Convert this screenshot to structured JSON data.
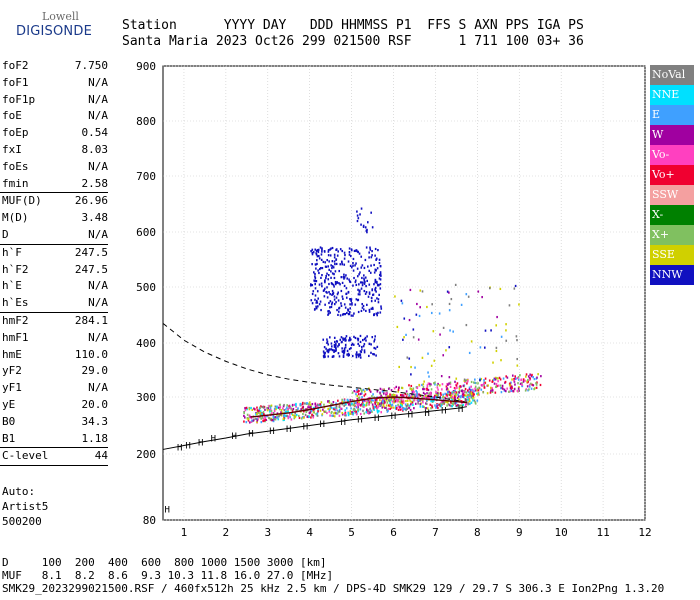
{
  "logo": {
    "top": "Lowell",
    "bottom": "DIGISONDE"
  },
  "header": {
    "line1": "Station      YYYY DAY   DDD HHMMSS P1  FFS S AXN PPS IGA PS",
    "line2": "Santa Maria 2023 Oct26 299 021500 RSF      1 711 100 03+ 36"
  },
  "params": {
    "group1": [
      {
        "label": "foF2",
        "value": "7.750"
      },
      {
        "label": "foF1",
        "value": "N/A"
      },
      {
        "label": "foF1p",
        "value": "N/A"
      },
      {
        "label": "foE",
        "value": "N/A"
      },
      {
        "label": "foEp",
        "value": "0.54"
      },
      {
        "label": "fxI",
        "value": "8.03"
      },
      {
        "label": "foEs",
        "value": "N/A"
      },
      {
        "label": "fmin",
        "value": "2.58"
      }
    ],
    "group2": [
      {
        "label": "MUF(D)",
        "value": "26.96"
      },
      {
        "label": "M(D)",
        "value": "3.48"
      },
      {
        "label": "D",
        "value": "N/A"
      }
    ],
    "group3": [
      {
        "label": "h`F",
        "value": "247.5"
      },
      {
        "label": "h`F2",
        "value": "247.5"
      },
      {
        "label": "h`E",
        "value": "N/A"
      },
      {
        "label": "h`Es",
        "value": "N/A"
      }
    ],
    "group4": [
      {
        "label": "hmF2",
        "value": "284.1"
      },
      {
        "label": "hmF1",
        "value": "N/A"
      },
      {
        "label": "hmE",
        "value": "110.0"
      },
      {
        "label": "yF2",
        "value": "29.0"
      },
      {
        "label": "yF1",
        "value": "N/A"
      },
      {
        "label": "yE",
        "value": "20.0"
      },
      {
        "label": "B0",
        "value": "34.3"
      },
      {
        "label": "B1",
        "value": "1.18"
      }
    ],
    "group5": [
      {
        "label": "C-level",
        "value": "44"
      }
    ]
  },
  "auto": {
    "line1": "Auto:",
    "line2": "Artist5",
    "line3": "500200"
  },
  "legend": [
    {
      "label": "NoVal",
      "color": "#808080"
    },
    {
      "label": "NNE",
      "color": "#00e0ff"
    },
    {
      "label": "E",
      "color": "#3fa0ff"
    },
    {
      "label": "W",
      "color": "#a000a0"
    },
    {
      "label": "Vo-",
      "color": "#ff40c0"
    },
    {
      "label": "Vo+",
      "color": "#f00030"
    },
    {
      "label": "SSW",
      "color": "#f4a0a0"
    },
    {
      "label": "X-",
      "color": "#008000"
    },
    {
      "label": "X+",
      "color": "#80c060"
    },
    {
      "label": "SSE",
      "color": "#d0d000"
    },
    {
      "label": "NNW",
      "color": "#1010c0"
    }
  ],
  "footer": {
    "line1": "D     100  200  400  600  800 1000 1500 3000 [km]",
    "line2": "MUF   8.1  8.2  8.6  9.3 10.3 11.8 16.0 27.0 [MHz]",
    "line3": "SMK29_2023299021500.RSF / 460fx512h 25 kHz 2.5 km / DPS-4D SMK29 129 / 29.7 S 306.3 E Ion2Png 1.3.20"
  },
  "chart_data": {
    "type": "scatter",
    "xlim": [
      0.5,
      12
    ],
    "ylim": [
      80,
      900
    ],
    "xticks": [
      "1",
      "2",
      "3",
      "4",
      "5",
      "6",
      "7",
      "8",
      "9",
      "10",
      "11",
      "12"
    ],
    "yticks": [
      "80",
      "200",
      "300",
      "400",
      "500",
      "600",
      "700",
      "800",
      "900"
    ],
    "grid": true,
    "trace": {
      "x": [
        2.6,
        3.0,
        3.5,
        4.0,
        4.5,
        5.0,
        5.5,
        6.0,
        6.5,
        7.0,
        7.5,
        7.75
      ],
      "y": [
        265,
        268,
        272,
        278,
        285,
        292,
        298,
        300,
        298,
        295,
        292,
        290
      ]
    },
    "profile": {
      "x": [
        0.5,
        1.0,
        1.5,
        2.0,
        2.5,
        3.0,
        3.5,
        4.0,
        4.5,
        5.0,
        5.5,
        6.0,
        6.5,
        7.0,
        7.5,
        7.75
      ],
      "y": [
        435,
        405,
        383,
        366,
        352,
        341,
        333,
        327,
        322,
        318,
        314,
        310,
        305,
        300,
        294,
        291
      ]
    },
    "virtual_height": {
      "x": [
        0.5,
        1.0,
        1.5,
        2.0,
        2.5,
        3.0,
        3.5,
        4.0,
        4.5,
        5.0,
        5.5,
        6.0,
        6.5,
        7.0,
        7.5,
        7.75
      ],
      "y": [
        208,
        215,
        222,
        228,
        235,
        240,
        245,
        250,
        255,
        260,
        264,
        268,
        272,
        276,
        280,
        283
      ]
    },
    "h_markers": [
      [
        0.6,
        101
      ],
      [
        0.9,
        213
      ],
      [
        1.1,
        217
      ],
      [
        1.4,
        222
      ],
      [
        1.7,
        229
      ],
      [
        2.2,
        233
      ],
      [
        2.6,
        238
      ],
      [
        3.1,
        242
      ],
      [
        3.5,
        246
      ],
      [
        3.9,
        250
      ],
      [
        4.3,
        254
      ],
      [
        4.8,
        258
      ],
      [
        5.2,
        262
      ],
      [
        5.6,
        265
      ],
      [
        6.0,
        268
      ],
      [
        6.4,
        271
      ],
      [
        6.8,
        274
      ],
      [
        7.2,
        278
      ],
      [
        7.6,
        281
      ]
    ],
    "clusters": [
      {
        "name": "F2-trace-dense",
        "x0": 2.4,
        "x1": 8.0,
        "y0": 250,
        "y1": 305,
        "n": 900,
        "colors": [
          "#a000a0",
          "#f00030",
          "#ff40c0",
          "#d0d000",
          "#3fa0ff",
          "#00e0ff",
          "#80c060",
          "#808080"
        ]
      },
      {
        "name": "F2-trace-upper",
        "x0": 5.0,
        "x1": 9.5,
        "y0": 285,
        "y1": 340,
        "n": 450,
        "colors": [
          "#a000a0",
          "#f00030",
          "#d0d000",
          "#3fa0ff",
          "#80c060",
          "#ff40c0"
        ]
      },
      {
        "name": "NNW-high",
        "x0": 4.0,
        "x1": 5.7,
        "y0": 450,
        "y1": 575,
        "n": 380,
        "colors": [
          "#1010c0"
        ]
      },
      {
        "name": "NNW-mid",
        "x0": 4.3,
        "x1": 5.6,
        "y0": 375,
        "y1": 415,
        "n": 140,
        "colors": [
          "#1010c0"
        ]
      },
      {
        "name": "NNW-top",
        "x0": 5.1,
        "x1": 5.5,
        "y0": 600,
        "y1": 648,
        "n": 16,
        "colors": [
          "#1010c0"
        ]
      },
      {
        "name": "scatter-mid",
        "x0": 6.0,
        "x1": 9.0,
        "y0": 330,
        "y1": 510,
        "n": 90,
        "colors": [
          "#1010c0",
          "#808080",
          "#d0d000",
          "#a000a0",
          "#3fa0ff"
        ]
      }
    ]
  }
}
